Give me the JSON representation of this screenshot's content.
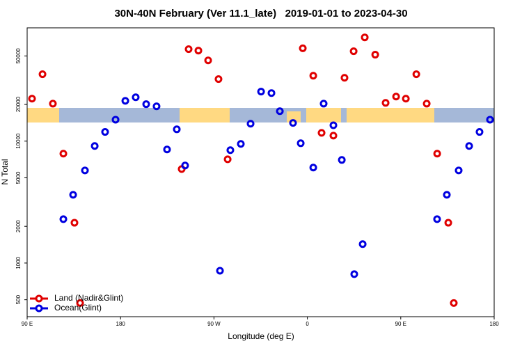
{
  "chart_data": {
    "type": "scatter",
    "title": "30N-40N February (Ver 11.1_late)   2019-01-01 to 2023-04-30",
    "x_label": "Longitude (deg E)",
    "y_label": "N Total",
    "xlim": [
      90,
      540
    ],
    "xticks": [
      {
        "value": 90,
        "label": "90 E"
      },
      180,
      {
        "value": 270,
        "label": "90 W"
      },
      {
        "value": 360,
        "label": "0"
      },
      {
        "value": 450,
        "label": "90 E"
      },
      {
        "value": 540,
        "label": "180"
      }
    ],
    "ylim": [
      363,
      85000
    ],
    "yscale": "log",
    "yticks": [
      500,
      1000,
      2000,
      5000,
      10000,
      20000,
      50000
    ],
    "legend": "lower left",
    "series": [
      {
        "name": "Land (Nadir&Glint)",
        "color": "#e00000",
        "x": [
          94.7,
          104.8,
          114.8,
          124.9,
          135.6,
          141,
          238.9,
          245.6,
          255,
          264.4,
          274.4,
          283.2,
          355.6,
          365.7,
          373.7,
          385.1,
          395.8,
          404.6,
          415.3,
          425.4,
          435.4,
          445.5,
          454.9,
          465,
          475,
          485.1,
          495.8,
          501.1
        ],
        "values": [
          22300,
          35400,
          20300,
          7900,
          2140,
          470,
          5900,
          56800,
          55300,
          46000,
          32300,
          7100,
          57800,
          34400,
          11700,
          11100,
          33100,
          54600,
          71000,
          51200,
          20600,
          23200,
          22300,
          35400,
          20300,
          7900,
          2140,
          470
        ]
      },
      {
        "name": "Ocean(Glint)",
        "color": "#0000e0",
        "x": [
          124.9,
          134.3,
          145.7,
          155.1,
          165.1,
          175.2,
          184.6,
          194.6,
          204.7,
          214.7,
          224.8,
          234.2,
          242.2,
          275.8,
          285.8,
          295.9,
          305.3,
          315.4,
          325.4,
          333.5,
          346.2,
          353.6,
          365.7,
          375.7,
          385.1,
          393.2,
          405.2,
          413.3,
          485,
          494.4,
          505.8,
          515.9,
          525.9,
          536
        ],
        "values": [
          2290,
          3630,
          5750,
          9120,
          11900,
          15000,
          21400,
          22900,
          20100,
          19300,
          8540,
          12500,
          6310,
          865,
          8430,
          9490,
          13900,
          25500,
          24800,
          17600,
          14100,
          9610,
          6070,
          20300,
          13500,
          7010,
          811,
          1430,
          2290,
          3630,
          5750,
          9120,
          11900,
          15000
        ]
      }
    ]
  }
}
